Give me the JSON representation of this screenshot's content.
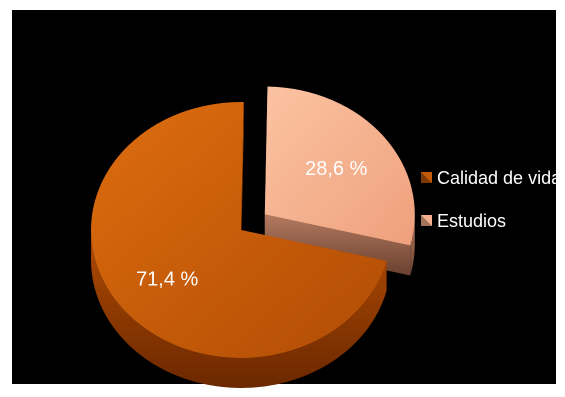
{
  "chart_data": {
    "type": "pie",
    "title": "",
    "labels": [
      "Calidad de vida",
      "Estudios"
    ],
    "values": [
      71.4,
      28.6
    ],
    "value_labels": [
      "71,4 %",
      "28,6 %"
    ],
    "colors": [
      "#c45a06",
      "#f7b08e"
    ],
    "exploded": "Estudios",
    "style": "3d",
    "legend_position": "right"
  }
}
